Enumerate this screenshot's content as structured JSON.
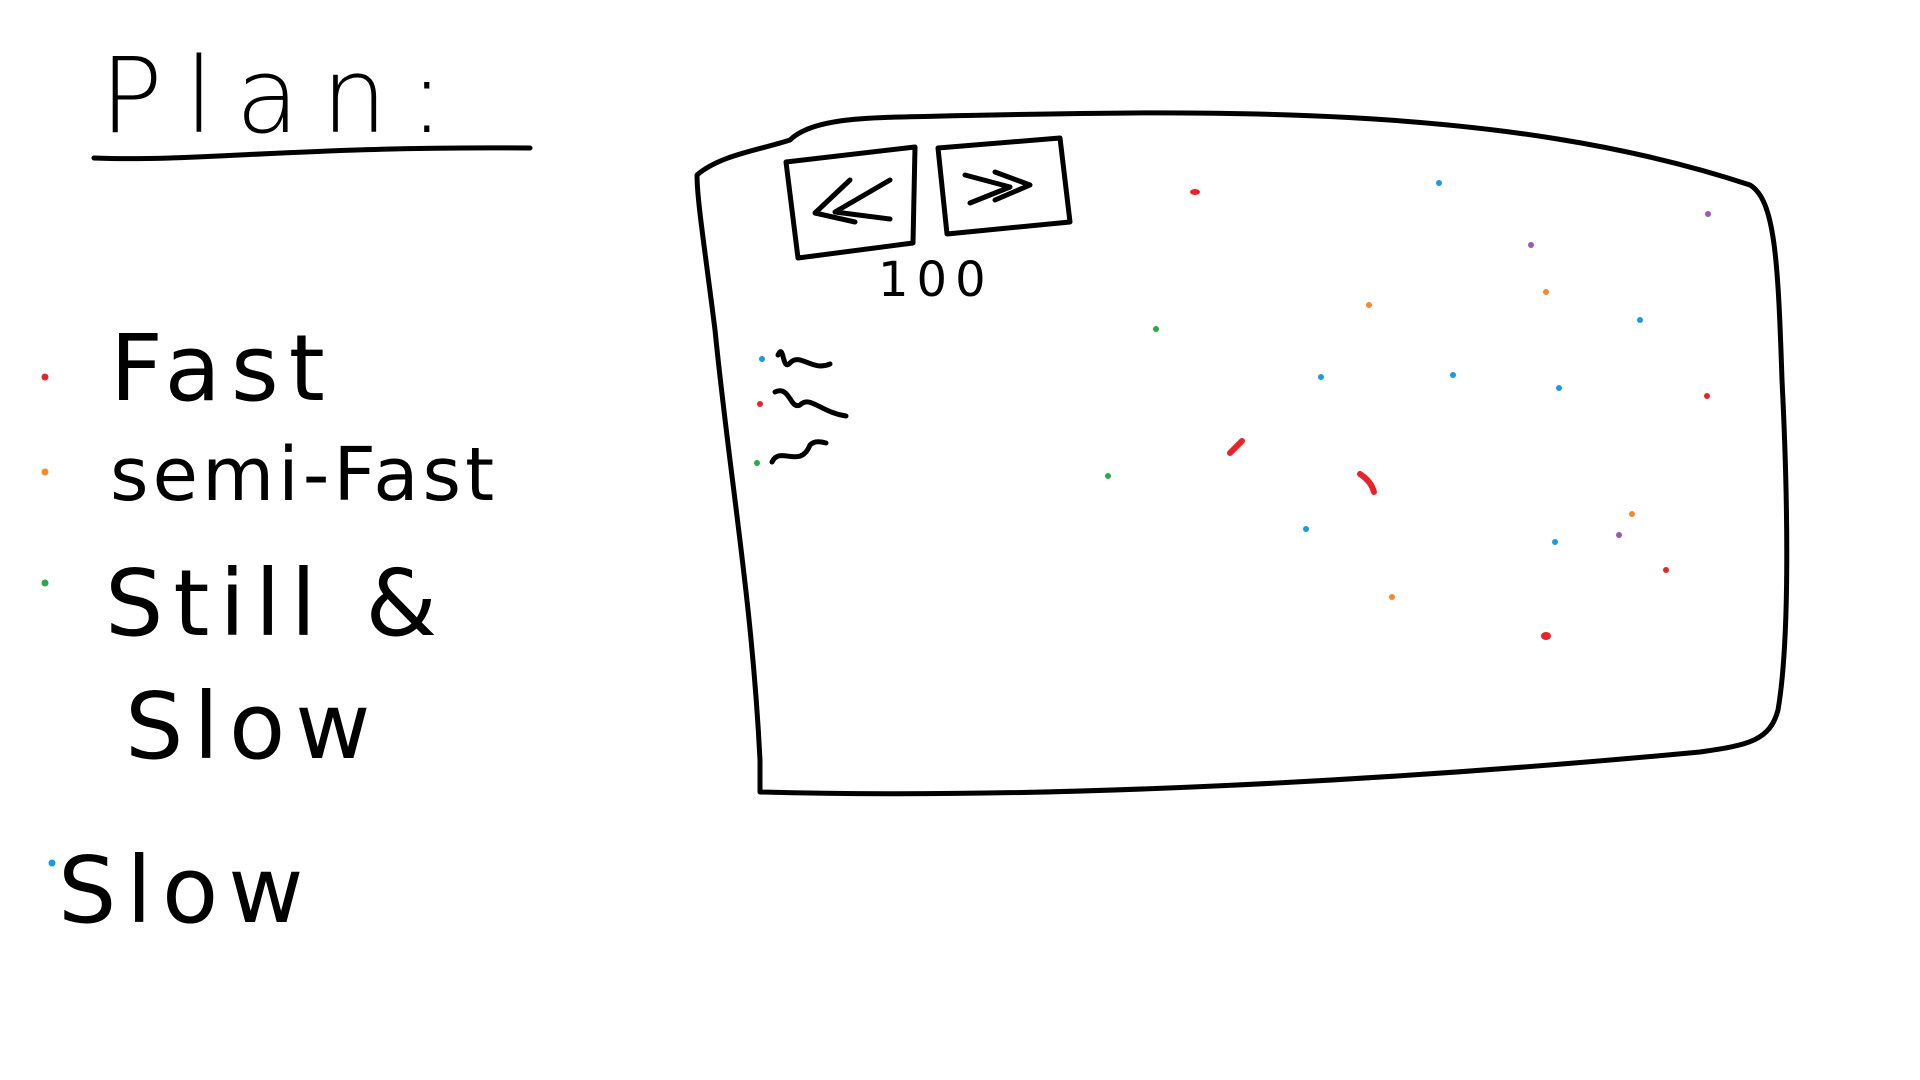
{
  "title": "Plan:",
  "legend": [
    {
      "label": "Fast",
      "color": "#e8242b"
    },
    {
      "label": "semi-Fast",
      "color": "#f58a2b"
    },
    {
      "label": "Still &",
      "color": "#2ca84a"
    },
    {
      "label": "Slow",
      "color": "#2ca84a"
    },
    {
      "label": "Slow",
      "color": "#1a9be0"
    }
  ],
  "controls": {
    "rewind_label": "<<",
    "forward_label": ">>",
    "count": "100"
  },
  "icons": [
    "rewind-icon",
    "fast-forward-icon"
  ],
  "colors": {
    "fast": "#e8242b",
    "semi_fast": "#f58a2b",
    "still": "#2ca84a",
    "slow": "#1a9be0",
    "other": "#9b59b6",
    "ink": "#000000"
  }
}
